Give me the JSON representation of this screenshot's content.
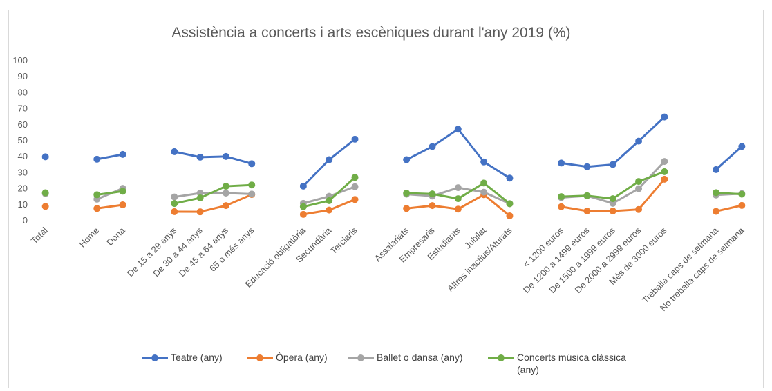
{
  "chart_data": {
    "type": "line",
    "title": "Assistència a concerts i arts escèniques durant l'any 2019 (%)",
    "categories": [
      "Total",
      null,
      "Home",
      "Dona",
      null,
      "De 15 a 29 anys",
      "De 30 a 44 anys",
      "De 45 a 64 anys",
      "65 o més anys",
      null,
      "Educació obligatòria",
      "Secundària",
      "Terciaris",
      null,
      "Assalariats",
      "Empresaris",
      "Estudiants",
      "Jubilat",
      "Altres inactius/Aturats",
      null,
      "< 1200 euros",
      "De 1200 a 1499 euros",
      "De 1500 a 1999 euros",
      "De 2000 a 2999 euros",
      "Més de 3000 euros",
      null,
      "Treballa caps de setmana",
      "No treballa caps de setmana"
    ],
    "series": [
      {
        "name": "Teatre (any)",
        "color": "#4472c4",
        "values": [
          39.5,
          null,
          38,
          41,
          null,
          42.7,
          39.3,
          39.7,
          35.2,
          null,
          21.2,
          37.7,
          50.5,
          null,
          37.7,
          45.9,
          56.8,
          36.3,
          26.2,
          null,
          35.6,
          33.3,
          34.7,
          49.3,
          64.4,
          null,
          31.5,
          46
        ]
      },
      {
        "name": "Òpera (any)",
        "color": "#ed7d31",
        "values": [
          8.5,
          null,
          7.2,
          9.5,
          null,
          5.2,
          5.1,
          9,
          15.9,
          null,
          3.5,
          6.2,
          12.8,
          null,
          7.2,
          9,
          6.8,
          15.8,
          2.6,
          null,
          8.3,
          5.6,
          5.6,
          6.6,
          25.5,
          null,
          5.4,
          9.1
        ]
      },
      {
        "name": "Ballet o dansa (any)",
        "color": "#a5a5a5",
        "values": [
          16.5,
          null,
          13,
          19.8,
          null,
          14.4,
          16.8,
          16.8,
          16.2,
          null,
          10.4,
          14.8,
          20.8,
          null,
          16.1,
          15,
          20.2,
          17.4,
          10.2,
          null,
          14,
          15.1,
          10.4,
          19.6,
          36.6,
          null,
          15.6,
          16.5
        ]
      },
      {
        "name": "Concerts música clàssica (any)",
        "color": "#70ad47",
        "values": [
          17,
          null,
          15.8,
          18,
          null,
          10.3,
          13.8,
          21.1,
          21.9,
          null,
          8.3,
          12.1,
          26.6,
          null,
          16.8,
          16.3,
          13.3,
          23.1,
          10.2,
          null,
          14.6,
          15.2,
          13.3,
          24.1,
          30.2,
          null,
          17.1,
          16.1
        ]
      }
    ],
    "ylim": [
      0,
      100
    ],
    "yticks": [
      0,
      10,
      20,
      30,
      40,
      50,
      60,
      70,
      80,
      90,
      100
    ],
    "grid": false,
    "legend": "bottom"
  }
}
